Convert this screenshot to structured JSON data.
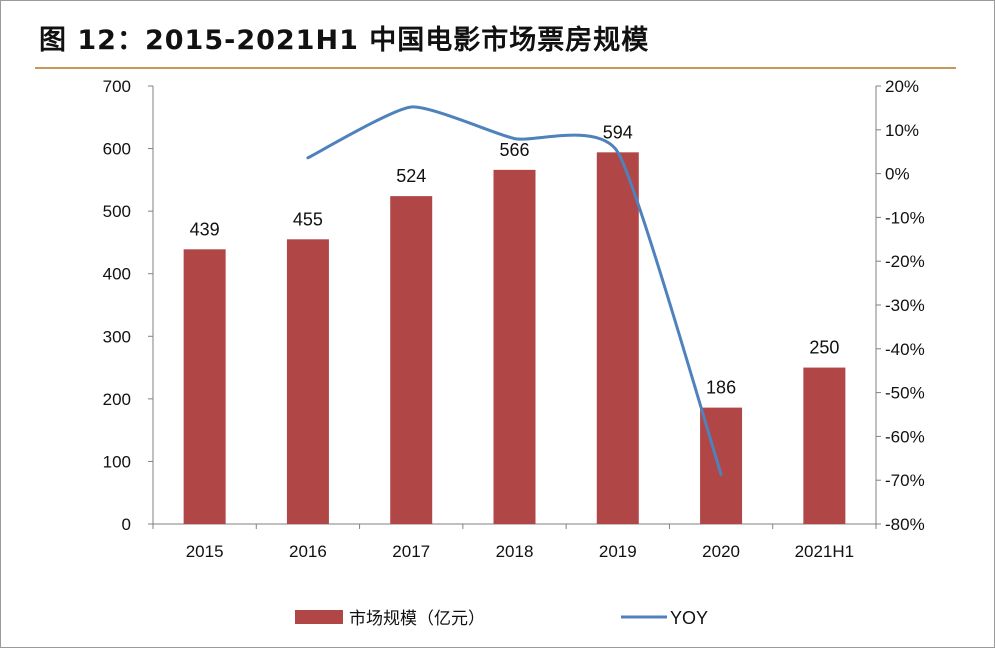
{
  "title": "图 12：2015-2021H1 中国电影市场票房规模",
  "chart_data": {
    "type": "bar",
    "categories": [
      "2015",
      "2016",
      "2017",
      "2018",
      "2019",
      "2020",
      "2021H1"
    ],
    "series": [
      {
        "name": "市场规模（亿元）",
        "type": "bar",
        "axis": "left",
        "values": [
          439,
          455,
          524,
          566,
          594,
          186,
          250
        ],
        "color": "#b04646"
      },
      {
        "name": "YOY",
        "type": "line",
        "axis": "right",
        "smooth": true,
        "values": [
          null,
          3.6,
          15.2,
          8.0,
          4.9,
          -68.7,
          null
        ],
        "color": "#4f81bd"
      }
    ],
    "data_labels": [
      "439",
      "455",
      "524",
      "566",
      "594",
      "186",
      "250"
    ],
    "y_left": {
      "min": 0,
      "max": 700,
      "step": 100,
      "ticks": [
        "0",
        "100",
        "200",
        "300",
        "400",
        "500",
        "600",
        "700"
      ]
    },
    "y_right": {
      "min": -80,
      "max": 20,
      "step": 10,
      "ticks": [
        "-80%",
        "-70%",
        "-60%",
        "-50%",
        "-40%",
        "-30%",
        "-20%",
        "-10%",
        "0%",
        "10%",
        "20%"
      ]
    },
    "legend": {
      "position": "bottom",
      "labels": [
        "市场规模（亿元）",
        "YOY"
      ]
    },
    "grid": false
  }
}
